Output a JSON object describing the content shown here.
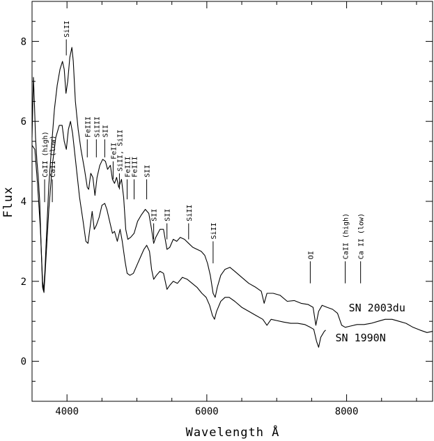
{
  "chart_data": {
    "type": "line",
    "title": "",
    "xlabel": "Wavelength Å",
    "ylabel": "Flux",
    "xlim": [
      3500,
      9230
    ],
    "ylim": [
      -1,
      9
    ],
    "x_ticks": [
      4000,
      6000,
      8000
    ],
    "y_ticks": [
      0,
      2,
      4,
      6,
      8
    ],
    "grid": false,
    "series": [
      {
        "name": "SN 2003du",
        "points": [
          [
            3500,
            5.6
          ],
          [
            3520,
            7.1
          ],
          [
            3535,
            6.4
          ],
          [
            3550,
            5.6
          ],
          [
            3570,
            5.0
          ],
          [
            3590,
            4.6
          ],
          [
            3610,
            4.0
          ],
          [
            3630,
            2.9
          ],
          [
            3650,
            1.85
          ],
          [
            3665,
            1.75
          ],
          [
            3685,
            2.3
          ],
          [
            3710,
            3.3
          ],
          [
            3740,
            4.4
          ],
          [
            3780,
            5.4
          ],
          [
            3820,
            6.3
          ],
          [
            3860,
            6.9
          ],
          [
            3900,
            7.3
          ],
          [
            3935,
            7.5
          ],
          [
            3960,
            7.3
          ],
          [
            3985,
            6.7
          ],
          [
            4010,
            7.0
          ],
          [
            4040,
            7.6
          ],
          [
            4070,
            7.85
          ],
          [
            4090,
            7.5
          ],
          [
            4120,
            6.5
          ],
          [
            4160,
            5.8
          ],
          [
            4200,
            5.3
          ],
          [
            4250,
            4.8
          ],
          [
            4290,
            4.35
          ],
          [
            4310,
            4.3
          ],
          [
            4340,
            4.7
          ],
          [
            4370,
            4.6
          ],
          [
            4400,
            4.15
          ],
          [
            4430,
            4.6
          ],
          [
            4470,
            4.9
          ],
          [
            4510,
            5.05
          ],
          [
            4550,
            5.0
          ],
          [
            4580,
            4.8
          ],
          [
            4620,
            4.9
          ],
          [
            4650,
            4.55
          ],
          [
            4680,
            4.45
          ],
          [
            4710,
            4.6
          ],
          [
            4740,
            4.35
          ],
          [
            4780,
            4.55
          ],
          [
            4810,
            4.1
          ],
          [
            4840,
            3.3
          ],
          [
            4870,
            3.05
          ],
          [
            4910,
            3.1
          ],
          [
            4960,
            3.2
          ],
          [
            5010,
            3.5
          ],
          [
            5060,
            3.65
          ],
          [
            5120,
            3.8
          ],
          [
            5170,
            3.7
          ],
          [
            5210,
            3.3
          ],
          [
            5240,
            2.95
          ],
          [
            5270,
            3.1
          ],
          [
            5330,
            3.3
          ],
          [
            5380,
            3.3
          ],
          [
            5430,
            2.8
          ],
          [
            5470,
            2.85
          ],
          [
            5520,
            3.05
          ],
          [
            5570,
            3.0
          ],
          [
            5620,
            3.1
          ],
          [
            5680,
            3.05
          ],
          [
            5740,
            2.95
          ],
          [
            5800,
            2.85
          ],
          [
            5860,
            2.8
          ],
          [
            5920,
            2.75
          ],
          [
            5970,
            2.65
          ],
          [
            6010,
            2.45
          ],
          [
            6050,
            2.15
          ],
          [
            6090,
            1.7
          ],
          [
            6120,
            1.6
          ],
          [
            6150,
            1.85
          ],
          [
            6200,
            2.15
          ],
          [
            6260,
            2.3
          ],
          [
            6330,
            2.35
          ],
          [
            6400,
            2.25
          ],
          [
            6500,
            2.1
          ],
          [
            6600,
            1.95
          ],
          [
            6700,
            1.85
          ],
          [
            6780,
            1.75
          ],
          [
            6820,
            1.45
          ],
          [
            6860,
            1.7
          ],
          [
            6950,
            1.7
          ],
          [
            7050,
            1.65
          ],
          [
            7150,
            1.5
          ],
          [
            7250,
            1.52
          ],
          [
            7350,
            1.45
          ],
          [
            7450,
            1.42
          ],
          [
            7520,
            1.35
          ],
          [
            7560,
            0.9
          ],
          [
            7600,
            1.25
          ],
          [
            7650,
            1.4
          ],
          [
            7720,
            1.35
          ],
          [
            7800,
            1.3
          ],
          [
            7870,
            1.2
          ],
          [
            7930,
            0.9
          ],
          [
            7980,
            0.85
          ],
          [
            8050,
            0.88
          ],
          [
            8150,
            0.92
          ],
          [
            8250,
            0.92
          ],
          [
            8350,
            0.95
          ],
          [
            8450,
            1.0
          ],
          [
            8550,
            1.05
          ],
          [
            8650,
            1.05
          ],
          [
            8750,
            1.0
          ],
          [
            8850,
            0.95
          ],
          [
            8950,
            0.85
          ],
          [
            9050,
            0.78
          ],
          [
            9150,
            0.72
          ],
          [
            9230,
            0.75
          ]
        ]
      },
      {
        "name": "SN 1990N",
        "points": [
          [
            3500,
            5.4
          ],
          [
            3540,
            5.3
          ],
          [
            3580,
            4.4
          ],
          [
            3620,
            3.3
          ],
          [
            3650,
            2.0
          ],
          [
            3670,
            1.72
          ],
          [
            3700,
            2.6
          ],
          [
            3740,
            3.8
          ],
          [
            3790,
            4.9
          ],
          [
            3840,
            5.6
          ],
          [
            3890,
            5.9
          ],
          [
            3930,
            5.9
          ],
          [
            3960,
            5.5
          ],
          [
            3990,
            5.3
          ],
          [
            4020,
            5.8
          ],
          [
            4050,
            6.0
          ],
          [
            4080,
            5.7
          ],
          [
            4130,
            4.9
          ],
          [
            4180,
            4.1
          ],
          [
            4230,
            3.5
          ],
          [
            4270,
            3.0
          ],
          [
            4300,
            2.95
          ],
          [
            4330,
            3.35
          ],
          [
            4360,
            3.75
          ],
          [
            4390,
            3.3
          ],
          [
            4420,
            3.4
          ],
          [
            4460,
            3.6
          ],
          [
            4500,
            3.9
          ],
          [
            4540,
            3.95
          ],
          [
            4570,
            3.8
          ],
          [
            4610,
            3.5
          ],
          [
            4650,
            3.2
          ],
          [
            4680,
            3.25
          ],
          [
            4720,
            3.0
          ],
          [
            4760,
            3.3
          ],
          [
            4790,
            3.0
          ],
          [
            4830,
            2.5
          ],
          [
            4860,
            2.2
          ],
          [
            4900,
            2.15
          ],
          [
            4950,
            2.2
          ],
          [
            5000,
            2.4
          ],
          [
            5050,
            2.6
          ],
          [
            5100,
            2.8
          ],
          [
            5140,
            2.9
          ],
          [
            5180,
            2.75
          ],
          [
            5210,
            2.3
          ],
          [
            5240,
            2.05
          ],
          [
            5280,
            2.15
          ],
          [
            5330,
            2.25
          ],
          [
            5380,
            2.2
          ],
          [
            5430,
            1.8
          ],
          [
            5470,
            1.9
          ],
          [
            5520,
            2.0
          ],
          [
            5580,
            1.95
          ],
          [
            5650,
            2.1
          ],
          [
            5720,
            2.05
          ],
          [
            5790,
            1.95
          ],
          [
            5860,
            1.85
          ],
          [
            5930,
            1.7
          ],
          [
            5990,
            1.6
          ],
          [
            6040,
            1.4
          ],
          [
            6080,
            1.15
          ],
          [
            6110,
            1.05
          ],
          [
            6140,
            1.25
          ],
          [
            6200,
            1.5
          ],
          [
            6260,
            1.6
          ],
          [
            6320,
            1.6
          ],
          [
            6400,
            1.5
          ],
          [
            6500,
            1.35
          ],
          [
            6600,
            1.25
          ],
          [
            6700,
            1.15
          ],
          [
            6800,
            1.05
          ],
          [
            6860,
            0.9
          ],
          [
            6920,
            1.05
          ],
          [
            7000,
            1.02
          ],
          [
            7100,
            0.98
          ],
          [
            7200,
            0.95
          ],
          [
            7300,
            0.95
          ],
          [
            7400,
            0.92
          ],
          [
            7480,
            0.85
          ],
          [
            7530,
            0.8
          ],
          [
            7570,
            0.5
          ],
          [
            7600,
            0.35
          ],
          [
            7630,
            0.6
          ],
          [
            7680,
            0.75
          ],
          [
            7700,
            0.78
          ]
        ]
      }
    ],
    "series_labels": [
      {
        "text": "SN 2003du",
        "at": [
          8030,
          1.25
        ]
      },
      {
        "text": "SN 1990N",
        "at": [
          7840,
          0.5
        ]
      }
    ],
    "annotations": [
      {
        "text": "CaII (high)",
        "x": 3680,
        "tick_y": [
          3.98,
          4.55
        ],
        "text_y": 4.6
      },
      {
        "text": "CaII (low)",
        "x": 3790,
        "tick_y": [
          3.98,
          4.55
        ],
        "text_y": 4.6
      },
      {
        "text": "SiII",
        "x": 3990,
        "tick_y": [
          7.65,
          8.05
        ],
        "text_y": 8.1
      },
      {
        "text": "FeIII",
        "x": 4290,
        "tick_y": [
          5.1,
          5.55
        ],
        "text_y": 5.6
      },
      {
        "text": "SiIII",
        "x": 4420,
        "tick_y": [
          5.1,
          5.55
        ],
        "text_y": 5.6
      },
      {
        "text": "SII",
        "x": 4540,
        "tick_y": [
          5.1,
          5.55
        ],
        "text_y": 5.6
      },
      {
        "text": "FeII",
        "x": 4660,
        "tick_y": [
          4.55,
          5.0
        ],
        "text_y": 5.05
      },
      {
        "text": "SiII, SiII",
        "x": 4750,
        "tick_y": [
          4.3,
          4.7
        ],
        "text_y": 4.75
      },
      {
        "text": "FeIII",
        "x": 4860,
        "tick_y": [
          4.05,
          4.55
        ],
        "text_y": 4.6
      },
      {
        "text": "FeIII",
        "x": 4960,
        "tick_y": [
          4.05,
          4.55
        ],
        "text_y": 4.6
      },
      {
        "text": "SII",
        "x": 5140,
        "tick_y": [
          4.05,
          4.55
        ],
        "text_y": 4.6
      },
      {
        "text": "SII",
        "x": 5240,
        "tick_y": [
          3.05,
          3.45
        ],
        "text_y": 3.5
      },
      {
        "text": "SII",
        "x": 5430,
        "tick_y": [
          3.05,
          3.45
        ],
        "text_y": 3.5
      },
      {
        "text": "SiII",
        "x": 5740,
        "tick_y": [
          3.05,
          3.45
        ],
        "text_y": 3.5
      },
      {
        "text": "SiII",
        "x": 6090,
        "tick_y": [
          2.45,
          3.0
        ],
        "text_y": 3.05
      },
      {
        "text": "OI",
        "x": 7480,
        "tick_y": [
          1.95,
          2.5
        ],
        "text_y": 2.55
      },
      {
        "text": "CaII (high)",
        "x": 7980,
        "tick_y": [
          1.95,
          2.5
        ],
        "text_y": 2.55
      },
      {
        "text": "Ca II (low)",
        "x": 8200,
        "tick_y": [
          1.95,
          2.5
        ],
        "text_y": 2.55
      }
    ]
  }
}
